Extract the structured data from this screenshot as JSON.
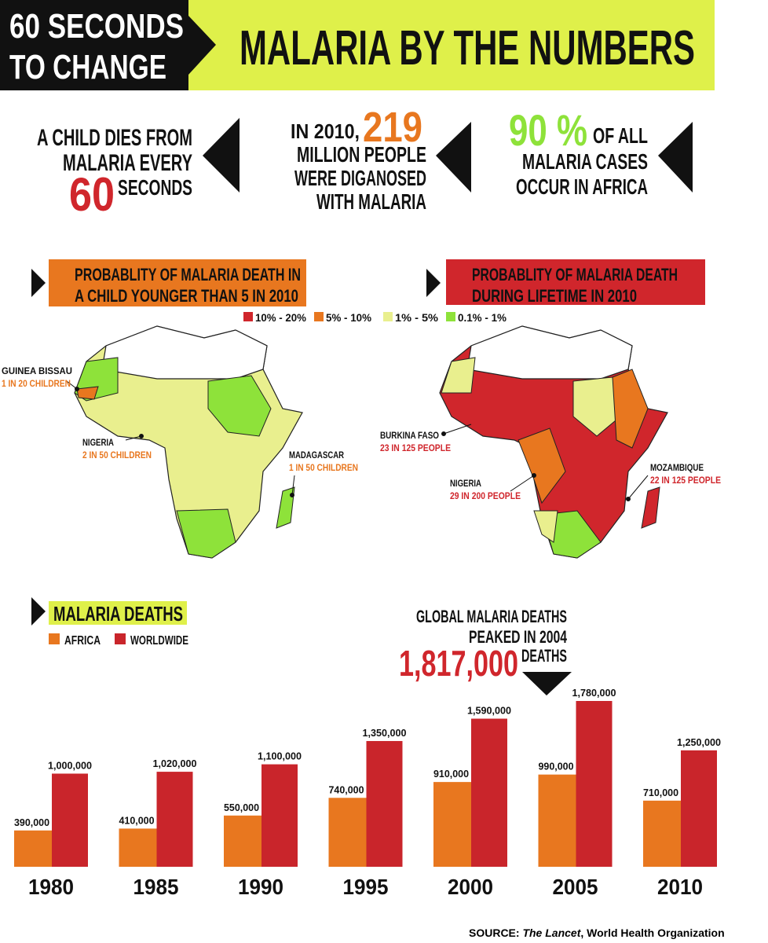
{
  "header": {
    "kicker_line1": "60 SECONDS",
    "kicker_line2": "TO CHANGE",
    "title": "MALARIA BY THE NUMBERS"
  },
  "facts": [
    {
      "lines": [
        "A CHILD DIES FROM",
        "MALARIA EVERY"
      ],
      "number": "60",
      "after": "SECONDS"
    },
    {
      "before": "IN 2010,",
      "number": "219",
      "lines": [
        "MILLION PEOPLE",
        "WERE DIGANOSED",
        "WITH MALARIA"
      ]
    },
    {
      "number": "90 %",
      "after": "OF ALL",
      "lines": [
        "MALARIA CASES",
        "OCCUR IN AFRICA"
      ]
    }
  ],
  "maps": {
    "legend": [
      {
        "label": "10% - 20%",
        "color": "#d0262c"
      },
      {
        "label": "5% - 10%",
        "color": "#e8771f"
      },
      {
        "label": "1% - 5%",
        "color": "#e9ef8e"
      },
      {
        "label": "0.1% - 1%",
        "color": "#8ee23a"
      }
    ],
    "left": {
      "title_lines": [
        "PROBABLITY OF MALARIA DEATH IN",
        "A CHILD YOUNGER THAN 5 IN 2010"
      ],
      "callouts": [
        {
          "place": "GUINEA BISSAU",
          "rate": "1 IN 20 CHILDREN"
        },
        {
          "place": "NIGERIA",
          "rate": "2 IN 50 CHILDREN"
        },
        {
          "place": "MADAGASCAR",
          "rate": "1 IN 50 CHILDREN"
        }
      ]
    },
    "right": {
      "title_lines": [
        "PROBABLITY OF MALARIA DEATH",
        "DURING LIFETIME IN 2010"
      ],
      "callouts": [
        {
          "place": "BURKINA FASO",
          "rate": "23 IN 125 PEOPLE"
        },
        {
          "place": "NIGERIA",
          "rate": "29 IN 200 PEOPLE"
        },
        {
          "place": "MOZAMBIQUE",
          "rate": "22 IN 125 PEOPLE"
        }
      ]
    }
  },
  "chart_data": {
    "type": "bar",
    "title": "MALARIA DEATHS",
    "categories": [
      "1980",
      "1985",
      "1990",
      "1995",
      "2000",
      "2005",
      "2010"
    ],
    "series": [
      {
        "name": "AFRICA",
        "color": "#e8771f",
        "values": [
          390000,
          410000,
          550000,
          740000,
          910000,
          990000,
          710000
        ],
        "value_labels": [
          "390,000",
          "410,000",
          "550,000",
          "740,000",
          "910,000",
          "990,000",
          "710,000"
        ]
      },
      {
        "name": "WORLDWIDE",
        "color": "#c9252b",
        "values": [
          1000000,
          1020000,
          1100000,
          1350000,
          1590000,
          1780000,
          1250000
        ],
        "value_labels": [
          "1,000,000",
          "1,020,000",
          "1,100,000",
          "1,350,000",
          "1,590,000",
          "1,780,000",
          "1,250,000"
        ]
      }
    ],
    "annotation": {
      "lines": [
        "GLOBAL MALARIA DEATHS",
        "PEAKED IN 2004"
      ],
      "value": "1,817,000",
      "unit": "DEATHS"
    }
  },
  "source": {
    "label": "SOURCE:",
    "publication": "The Lancet",
    "rest": ", World Health Organization"
  }
}
